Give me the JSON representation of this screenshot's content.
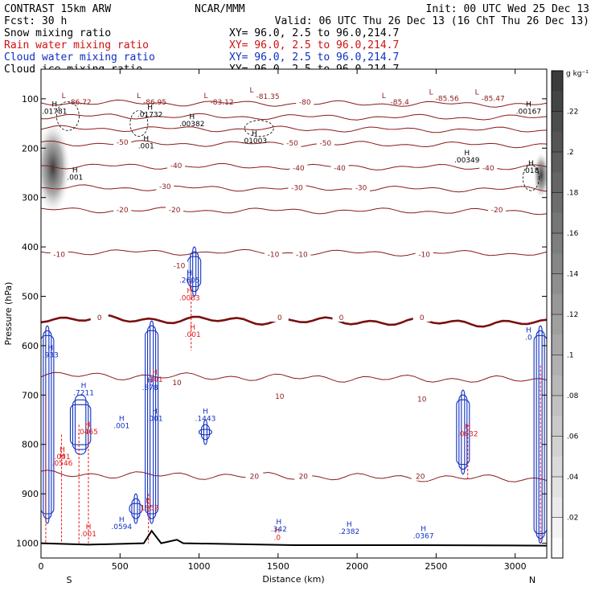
{
  "header": {
    "left": [
      {
        "text": "CONTRAST 15km ARW",
        "color": "#000000"
      },
      {
        "text": "Fcst:   30 h",
        "color": "#000000"
      },
      {
        "text": "Snow mixing ratio",
        "color": "#000000"
      },
      {
        "text": "Rain water mixing ratio",
        "color": "#d01010"
      },
      {
        "text": "Cloud water mixing ratio",
        "color": "#1030c0"
      },
      {
        "text": "Cloud ice mixing ratio",
        "color": "#000000"
      }
    ],
    "center": "NCAR/MMM",
    "init": "Init: 00 UTC Wed 25 Dec 13",
    "valid": "Valid: 06 UTC Thu 26 Dec 13 (16 ChT Thu 26 Dec 13)",
    "xy": [
      {
        "text": "XY=  96.0,  2.5 to  96.0,214.7",
        "color": "#000000"
      },
      {
        "text": "XY=  96.0,  2.5 to  96.0,214.7",
        "color": "#d01010"
      },
      {
        "text": "XY=  96.0,  2.5 to  96.0,214.7",
        "color": "#1030c0"
      },
      {
        "text": "XY=  96.0,  2.5 to  96.0,214.7",
        "color": "#000000"
      }
    ]
  },
  "colorbar": {
    "unit": "g kg⁻¹",
    "ticks": [
      ".22",
      ".2",
      ".18",
      ".16",
      ".14",
      ".12",
      ".1",
      ".08",
      ".06",
      ".04",
      ".02"
    ],
    "levels": [
      0.22,
      0.2,
      0.18,
      0.16,
      0.14,
      0.12,
      0.1,
      0.08,
      0.06,
      0.04,
      0.02
    ],
    "max": 0.24
  },
  "chart_data": {
    "type": "cross-section contour",
    "xlabel": "Distance (km)",
    "ylabel": "Pressure (hPa)",
    "xlim": [
      0,
      3200
    ],
    "ylim": [
      1030,
      40
    ],
    "xticks": [
      0,
      500,
      1000,
      1500,
      2000,
      2500,
      3000
    ],
    "xtick_labels": [
      "0",
      "500",
      "1000",
      "1500",
      "2000",
      "2500",
      "3000"
    ],
    "yticks": [
      100,
      200,
      300,
      400,
      500,
      600,
      700,
      800,
      900,
      1000
    ],
    "ytick_labels": [
      "100",
      "200",
      "300",
      "400",
      "500",
      "600",
      "700",
      "800",
      "900",
      "1000"
    ],
    "end_labels": {
      "left": "S",
      "right": "N"
    },
    "colors": {
      "temperature": "#8b1a1a",
      "freezing": "#7a1010",
      "rain": "#e01818",
      "cloud_water": "#1030c0",
      "cloud_ice": "#000000",
      "terrain": "#000000"
    },
    "temperature_contours": [
      {
        "t": -80,
        "p": 108
      },
      {
        "t": -70,
        "p": 135
      },
      {
        "t": -60,
        "p": 160
      },
      {
        "t": -50,
        "p": 190
      },
      {
        "t": -40,
        "p": 236
      },
      {
        "t": -30,
        "p": 280
      },
      {
        "t": -20,
        "p": 325
      },
      {
        "t": -10,
        "p": 410
      },
      {
        "t": 0,
        "p": 545
      },
      {
        "t": 10,
        "p": 660
      },
      {
        "t": 20,
        "p": 860
      }
    ],
    "temperature_labels": [
      {
        "text": "-80",
        "x": 1670,
        "p": 112
      },
      {
        "text": "-50",
        "x": 515,
        "p": 193
      },
      {
        "text": "-50",
        "x": 1590,
        "p": 195
      },
      {
        "text": "-50",
        "x": 1800,
        "p": 195
      },
      {
        "text": "-40",
        "x": 855,
        "p": 240
      },
      {
        "text": "-40",
        "x": 1630,
        "p": 245
      },
      {
        "text": "-40",
        "x": 1890,
        "p": 245
      },
      {
        "text": "-40",
        "x": 2830,
        "p": 245
      },
      {
        "text": "-30",
        "x": 785,
        "p": 283
      },
      {
        "text": "-30",
        "x": 1620,
        "p": 285
      },
      {
        "text": "-30",
        "x": 2025,
        "p": 285
      },
      {
        "text": "-20",
        "x": 515,
        "p": 330
      },
      {
        "text": "-20",
        "x": 845,
        "p": 330
      },
      {
        "text": "-20",
        "x": 2885,
        "p": 330
      },
      {
        "text": "-10",
        "x": 115,
        "p": 420
      },
      {
        "text": "-10",
        "x": 875,
        "p": 443
      },
      {
        "text": "-10",
        "x": 1470,
        "p": 420
      },
      {
        "text": "-10",
        "x": 1650,
        "p": 420
      },
      {
        "text": "-10",
        "x": 2425,
        "p": 420
      },
      {
        "text": "0",
        "x": 370,
        "p": 548
      },
      {
        "text": "0",
        "x": 1510,
        "p": 548
      },
      {
        "text": "0",
        "x": 1900,
        "p": 548
      },
      {
        "text": "0",
        "x": 2410,
        "p": 548
      },
      {
        "text": "10",
        "x": 860,
        "p": 680
      },
      {
        "text": "10",
        "x": 1510,
        "p": 708
      },
      {
        "text": "10",
        "x": 2410,
        "p": 713
      },
      {
        "text": "20",
        "x": 1350,
        "p": 870
      },
      {
        "text": "20",
        "x": 1660,
        "p": 870
      },
      {
        "text": "20",
        "x": 2400,
        "p": 870
      }
    ],
    "minima_labels": [
      {
        "text": "-86.72",
        "x": 245,
        "p": 112
      },
      {
        "text": "-86.95",
        "x": 720,
        "p": 112
      },
      {
        "text": "-83.12",
        "x": 1145,
        "p": 112
      },
      {
        "text": "-81.35",
        "x": 1435,
        "p": 100
      },
      {
        "text": "-85.4",
        "x": 2270,
        "p": 112
      },
      {
        "text": "-85.56",
        "x": 2570,
        "p": 104
      },
      {
        "text": "-85.47",
        "x": 2860,
        "p": 104
      }
    ],
    "snow_maxima": [
      {
        "text": ".01781",
        "x": 85,
        "p": 130
      },
      {
        "text": ".01732",
        "x": 690,
        "p": 137
      },
      {
        "text": ".00382",
        "x": 955,
        "p": 156
      },
      {
        "text": ".01003",
        "x": 1350,
        "p": 190
      },
      {
        "text": ".00349",
        "x": 2695,
        "p": 229
      },
      {
        "text": ".00167",
        "x": 3085,
        "p": 130
      },
      {
        "text": ".001",
        "x": 665,
        "p": 200
      },
      {
        "text": ".001",
        "x": 215,
        "p": 264
      },
      {
        "text": ".018",
        "x": 3100,
        "p": 250
      }
    ],
    "rain_maxima": [
      {
        "text": ".0063",
        "x": 940,
        "p": 508
      },
      {
        "text": ".001",
        "x": 960,
        "p": 582
      },
      {
        "text": ".001",
        "x": 720,
        "p": 673
      },
      {
        "text": ".0465",
        "x": 295,
        "p": 779
      },
      {
        "text": ".0546",
        "x": 135,
        "p": 843
      },
      {
        "text": ".001",
        "x": 135,
        "p": 830
      },
      {
        "text": ".1952",
        "x": 680,
        "p": 933
      },
      {
        "text": ".001",
        "x": 300,
        "p": 986
      },
      {
        "text": ".0",
        "x": 1495,
        "p": 993
      },
      {
        "text": ".0632",
        "x": 2700,
        "p": 783
      }
    ],
    "cloud_water_maxima": [
      {
        "text": ".933",
        "x": 60,
        "p": 624
      },
      {
        "text": ".7211",
        "x": 270,
        "p": 700
      },
      {
        "text": ".001",
        "x": 510,
        "p": 767
      },
      {
        "text": ".878",
        "x": 690,
        "p": 690
      },
      {
        "text": ".001",
        "x": 720,
        "p": 752
      },
      {
        "text": ".1443",
        "x": 1040,
        "p": 752
      },
      {
        "text": ".2605",
        "x": 940,
        "p": 472
      },
      {
        "text": ".0594",
        "x": 510,
        "p": 971
      },
      {
        "text": ".342",
        "x": 1505,
        "p": 976
      },
      {
        "text": ".2382",
        "x": 1950,
        "p": 981
      },
      {
        "text": ".0367",
        "x": 2420,
        "p": 990
      },
      {
        "text": ".0",
        "x": 3085,
        "p": 588
      }
    ],
    "snow_peak": [
      {
        "x": 75,
        "p": 240,
        "value": 0.22
      },
      {
        "x": 3165,
        "p": 255,
        "value": 0.12
      }
    ]
  }
}
